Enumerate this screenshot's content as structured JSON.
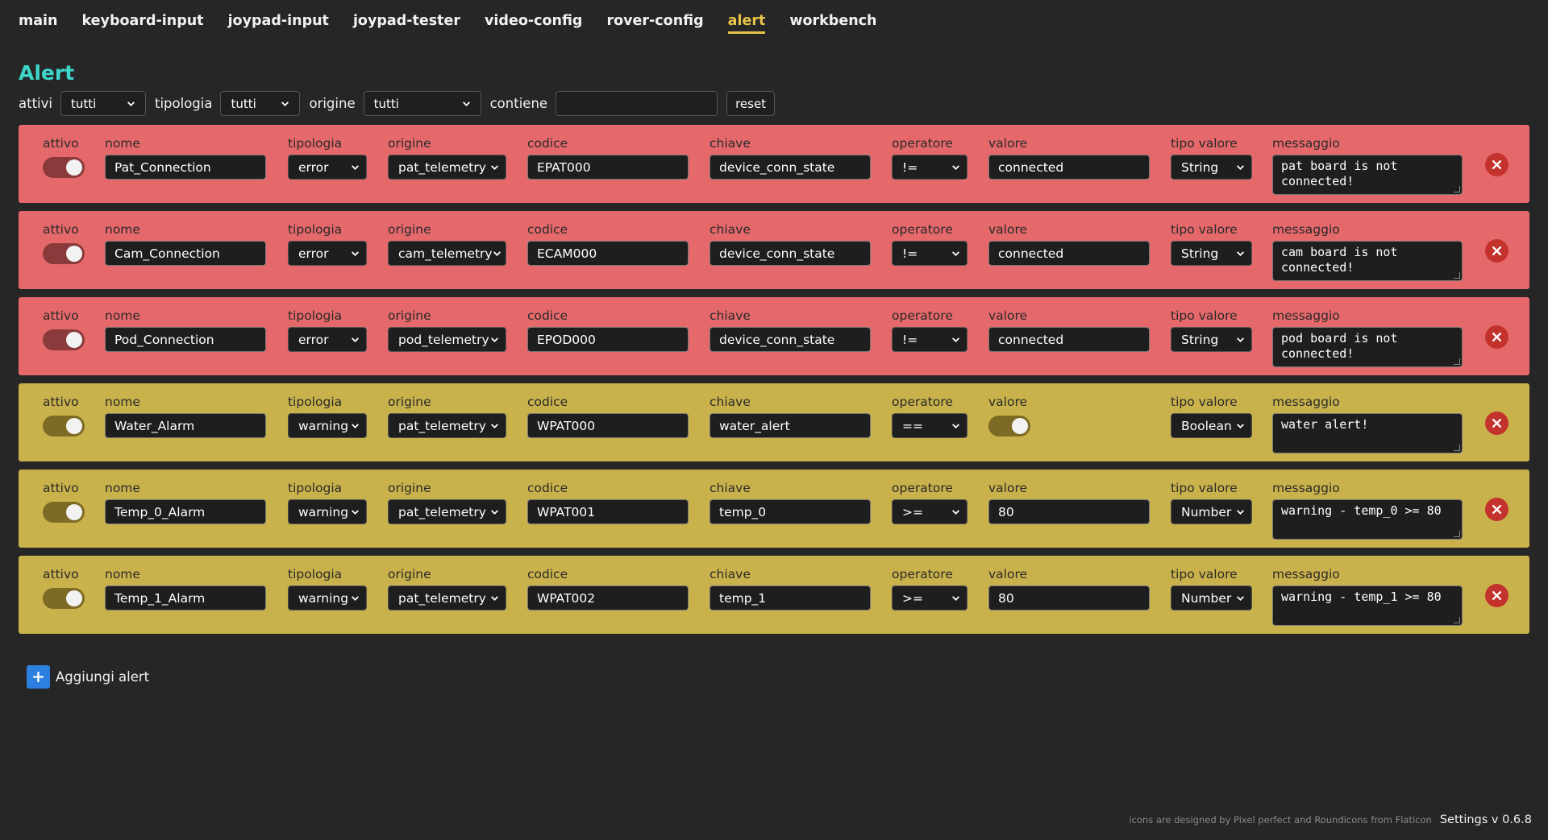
{
  "nav": {
    "tabs": [
      {
        "label": "main",
        "active": false
      },
      {
        "label": "keyboard-input",
        "active": false
      },
      {
        "label": "joypad-input",
        "active": false
      },
      {
        "label": "joypad-tester",
        "active": false
      },
      {
        "label": "video-config",
        "active": false
      },
      {
        "label": "rover-config",
        "active": false
      },
      {
        "label": "alert",
        "active": true
      },
      {
        "label": "workbench",
        "active": false
      }
    ]
  },
  "page_title": "Alert",
  "filters": {
    "attivi_label": "attivi",
    "attivi_value": "tutti",
    "tipologia_label": "tipologia",
    "tipologia_value": "tutti",
    "origine_label": "origine",
    "origine_value": "tutti",
    "contiene_label": "contiene",
    "contiene_value": "",
    "reset_label": "reset"
  },
  "columns": {
    "attivo": "attivo",
    "nome": "nome",
    "tipologia": "tipologia",
    "origine": "origine",
    "codice": "codice",
    "chiave": "chiave",
    "operatore": "operatore",
    "valore": "valore",
    "tipo_valore": "tipo valore",
    "messaggio": "messaggio"
  },
  "alerts": [
    {
      "attivo": true,
      "nome": "Pat_Connection",
      "tipologia": "error",
      "origine": "pat_telemetry",
      "codice": "EPAT000",
      "chiave": "device_conn_state",
      "operatore": "!=",
      "valore": "connected",
      "tipo_valore": "String",
      "messaggio": "pat board is not connected!"
    },
    {
      "attivo": true,
      "nome": "Cam_Connection",
      "tipologia": "error",
      "origine": "cam_telemetry",
      "codice": "ECAM000",
      "chiave": "device_conn_state",
      "operatore": "!=",
      "valore": "connected",
      "tipo_valore": "String",
      "messaggio": "cam board is not connected!"
    },
    {
      "attivo": true,
      "nome": "Pod_Connection",
      "tipologia": "error",
      "origine": "pod_telemetry",
      "codice": "EPOD000",
      "chiave": "device_conn_state",
      "operatore": "!=",
      "valore": "connected",
      "tipo_valore": "String",
      "messaggio": "pod board is not connected!"
    },
    {
      "attivo": true,
      "nome": "Water_Alarm",
      "tipologia": "warning",
      "origine": "pat_telemetry",
      "codice": "WPAT000",
      "chiave": "water_alert",
      "operatore": "==",
      "valore": true,
      "tipo_valore": "Boolean",
      "messaggio": "water alert!"
    },
    {
      "attivo": true,
      "nome": "Temp_0_Alarm",
      "tipologia": "warning",
      "origine": "pat_telemetry",
      "codice": "WPAT001",
      "chiave": "temp_0",
      "operatore": ">=",
      "valore": "80",
      "tipo_valore": "Number",
      "messaggio": "warning - temp_0 >= 80"
    },
    {
      "attivo": true,
      "nome": "Temp_1_Alarm",
      "tipologia": "warning",
      "origine": "pat_telemetry",
      "codice": "WPAT002",
      "chiave": "temp_1",
      "operatore": ">=",
      "valore": "80",
      "tipo_valore": "Number",
      "messaggio": "warning - temp_1 >= 80"
    }
  ],
  "add_button_label": "Aggiungi alert",
  "footer": {
    "credits": "icons are designed by Pixel perfect and Roundicons from Flaticon",
    "version": "Settings v 0.6.8"
  },
  "icons": {
    "add": "plus-icon",
    "delete": "close-icon",
    "dropdown": "chevron-down-icon"
  },
  "colors": {
    "accent_title": "#3dd6c8",
    "active_tab": "#e8c44a",
    "error_row": "#e5686b",
    "warning_row": "#c9b24b",
    "delete_button": "#c4322d",
    "add_button": "#2d7fe0"
  }
}
